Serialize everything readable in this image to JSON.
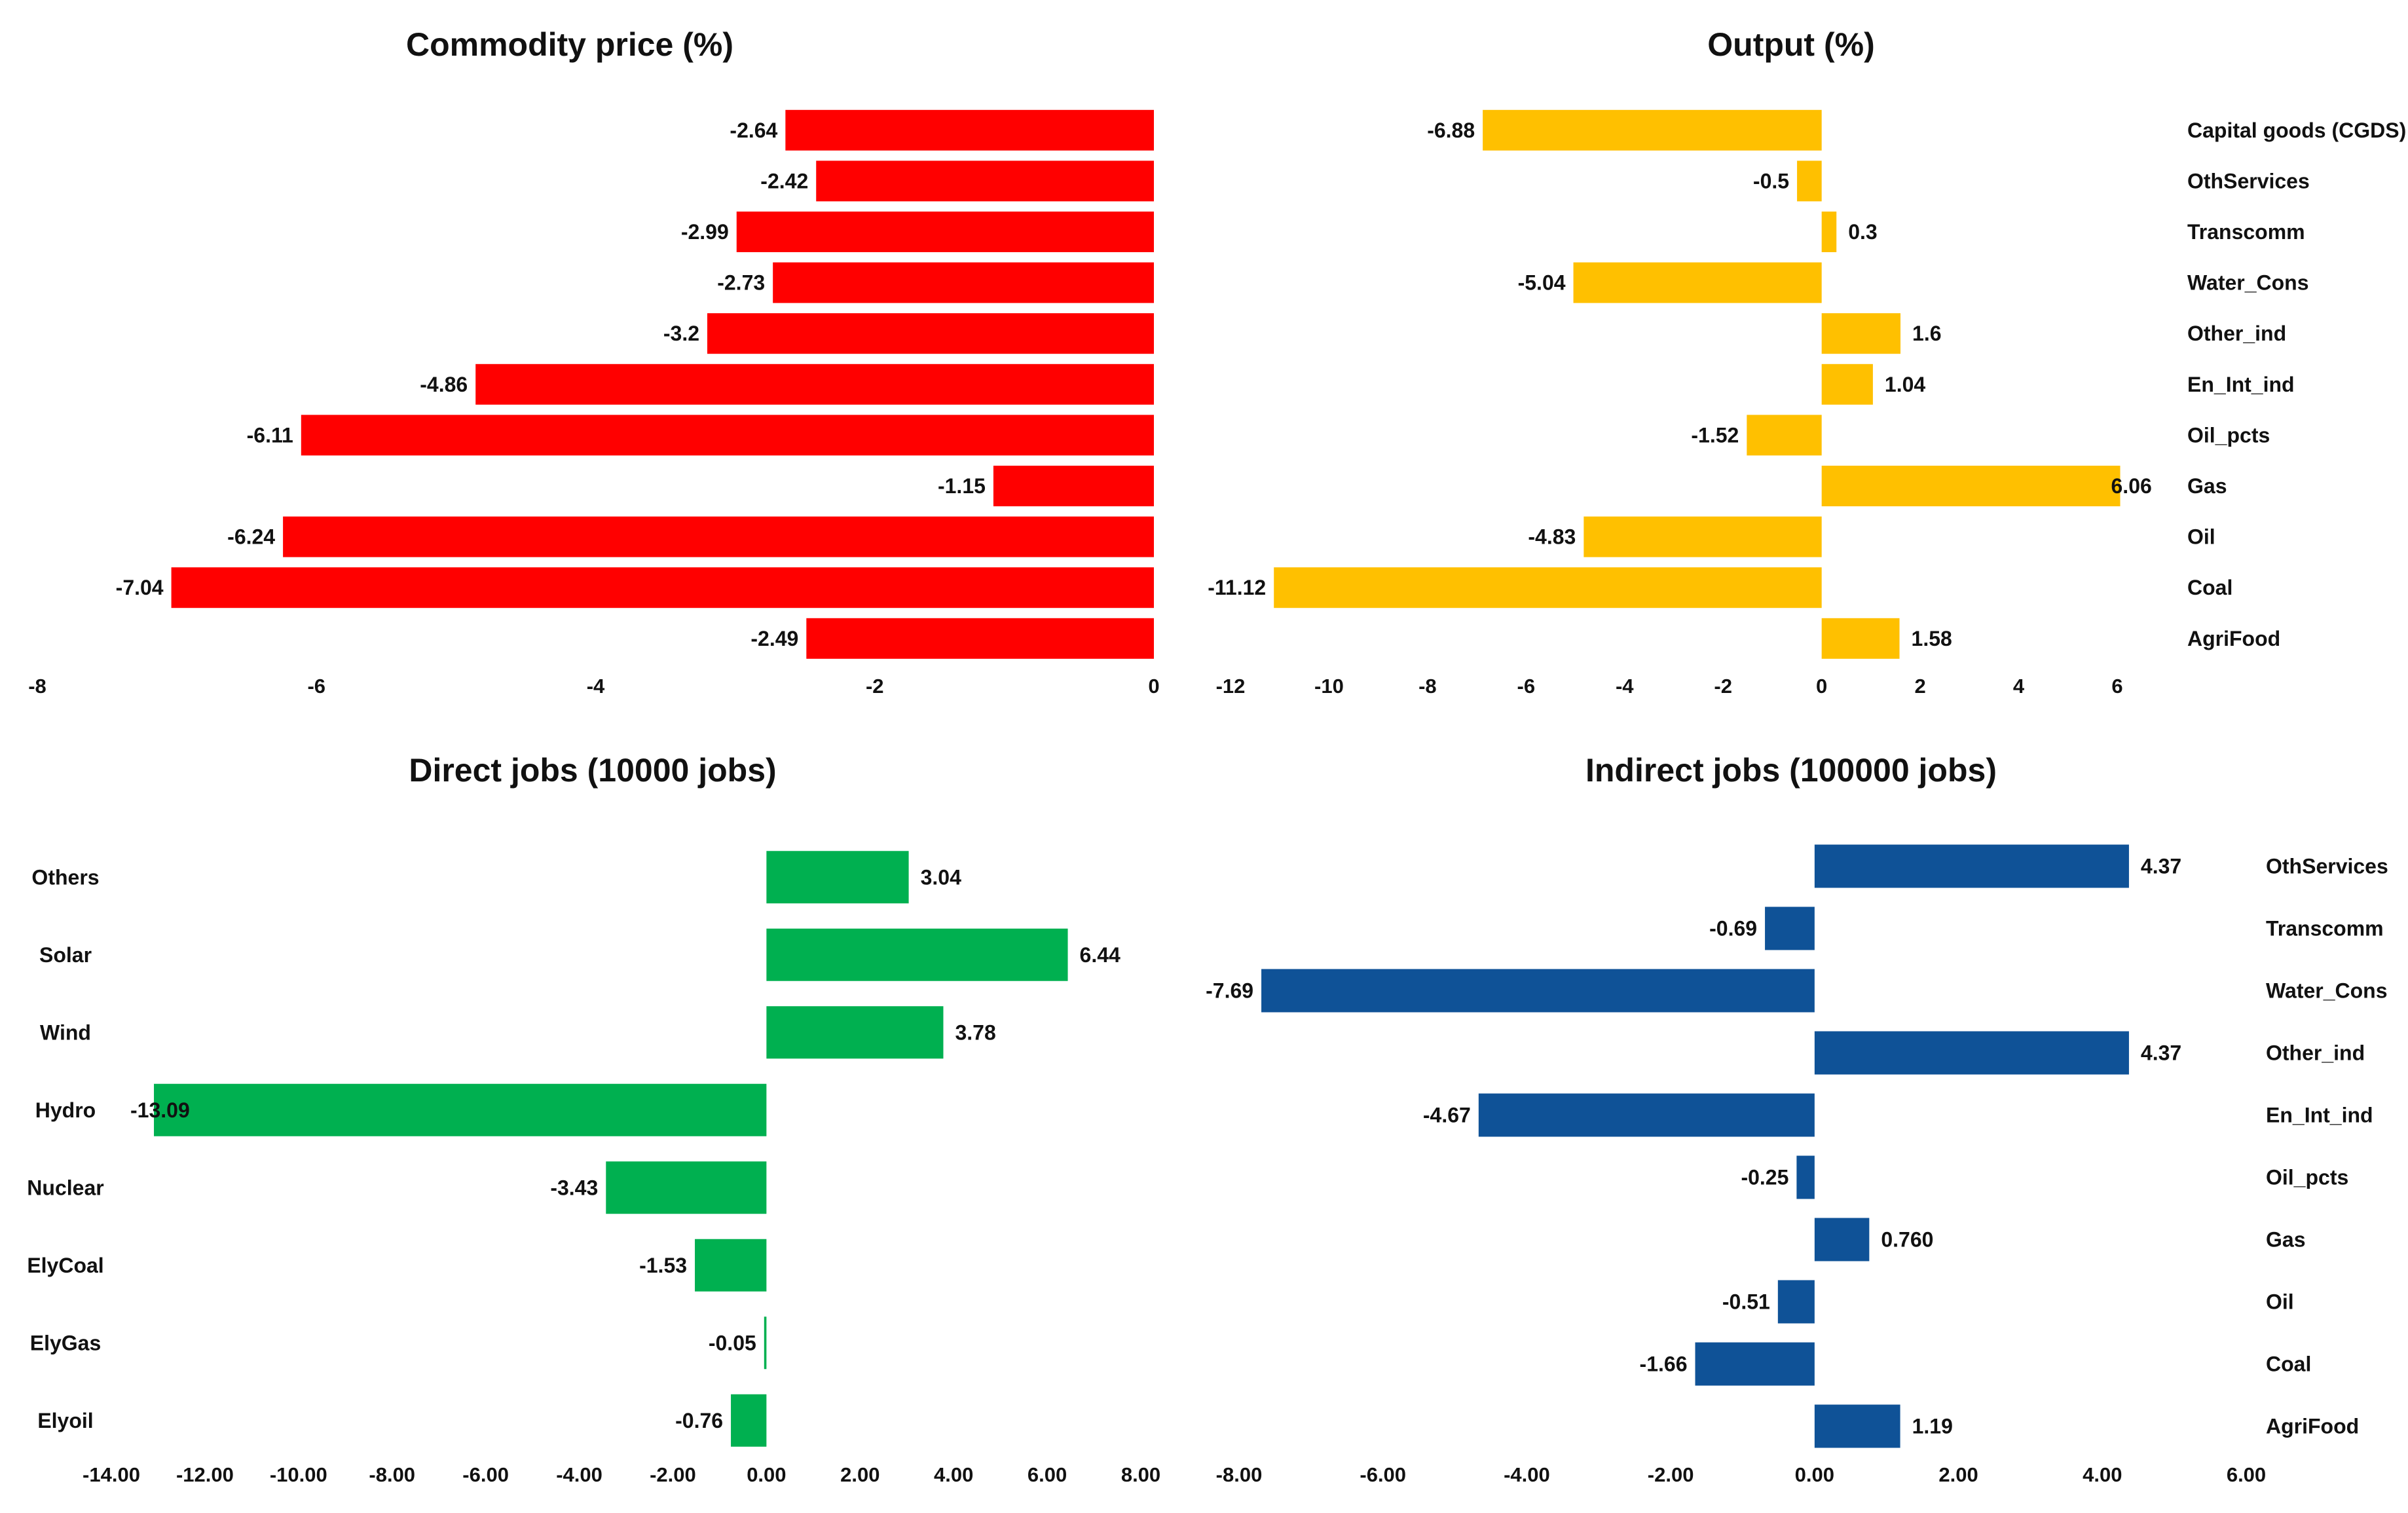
{
  "chart_data": [
    {
      "type": "bar",
      "orientation": "horizontal",
      "title": "Commodity price (%)",
      "color": "#ff0000",
      "categories": [
        "Capital goods (CGDS)",
        "OthServices",
        "Transcomm",
        "Water_Cons",
        "Other_ind",
        "En_Int_ind",
        "Oil_pcts",
        "Gas",
        "Oil",
        "Coal",
        "AgriFood"
      ],
      "values": [
        -2.64,
        -2.42,
        -2.99,
        -2.73,
        -3.2,
        -4.86,
        -6.11,
        -1.15,
        -6.24,
        -7.04,
        -2.49
      ],
      "value_labels": [
        "-2.64",
        "-2.42",
        "-2.99",
        "-2.73",
        "-3.2",
        "-4.86",
        "-6.11",
        "-1.15",
        "-6.24",
        "-7.04",
        "-2.49"
      ],
      "xlim": [
        -8,
        0
      ],
      "ticks": [
        -8,
        -6,
        -4,
        -2,
        0
      ],
      "tick_labels": [
        "-8",
        "-6",
        "-4",
        "-2",
        "0"
      ],
      "show_category_labels": false
    },
    {
      "type": "bar",
      "orientation": "horizontal",
      "title": "Output (%)",
      "color": "#ffc000",
      "categories": [
        "Capital goods (CGDS)",
        "OthServices",
        "Transcomm",
        "Water_Cons",
        "Other_ind",
        "En_Int_ind",
        "Oil_pcts",
        "Gas",
        "Oil",
        "Coal",
        "AgriFood"
      ],
      "values": [
        -6.88,
        -0.5,
        0.3,
        -5.04,
        1.6,
        1.04,
        -1.52,
        6.06,
        -4.83,
        -11.12,
        1.58
      ],
      "value_labels": [
        "-6.88",
        "-0.5",
        "0.3",
        "-5.04",
        "1.6",
        "1.04",
        "-1.52",
        "6.06",
        "-4.83",
        "-11.12",
        "1.58"
      ],
      "xlim": [
        -12,
        6
      ],
      "ticks": [
        -12,
        -10,
        -8,
        -6,
        -4,
        -2,
        0,
        2,
        4,
        6
      ],
      "tick_labels": [
        "-12",
        "-10",
        "-8",
        "-6",
        "-4",
        "-2",
        "0",
        "2",
        "4",
        "6"
      ],
      "show_category_labels": true
    },
    {
      "type": "bar",
      "orientation": "horizontal",
      "title": "Direct jobs (10000 jobs)",
      "color": "#00b050",
      "categories": [
        "Others",
        "Solar",
        "Wind",
        "Hydro",
        "Nuclear",
        "ElyCoal",
        "ElyGas",
        "Elyoil"
      ],
      "values": [
        3.04,
        6.44,
        3.78,
        -13.09,
        -3.43,
        -1.53,
        -0.05,
        -0.76
      ],
      "value_labels": [
        "3.04",
        "6.44",
        "3.78",
        "-13.09",
        "-3.43",
        "-1.53",
        "-0.05",
        "-0.76"
      ],
      "xlim": [
        -14,
        8
      ],
      "ticks": [
        -14,
        -12,
        -10,
        -8,
        -6,
        -4,
        -2,
        0,
        2,
        4,
        6,
        8
      ],
      "tick_labels": [
        "-14.00",
        "-12.00",
        "-10.00",
        "-8.00",
        "-6.00",
        "-4.00",
        "-2.00",
        "0.00",
        "2.00",
        "4.00",
        "6.00",
        "8.00"
      ],
      "show_category_labels": true
    },
    {
      "type": "bar",
      "orientation": "horizontal",
      "title": "Indirect jobs (100000 jobs)",
      "color": "#0f5297",
      "categories": [
        "OthServices",
        "Transcomm",
        "Water_Cons",
        "Other_ind",
        "En_Int_ind",
        "Oil_pcts",
        "Gas",
        "Oil",
        "Coal",
        "AgriFood"
      ],
      "values": [
        4.37,
        -0.69,
        -7.69,
        4.37,
        -4.67,
        -0.25,
        0.76,
        -0.51,
        -1.66,
        1.19
      ],
      "value_labels": [
        "4.37",
        "-0.69",
        "-7.69",
        "4.37",
        "-4.67",
        "-0.25",
        "0.760",
        "-0.51",
        "-1.66",
        "1.19"
      ],
      "xlim": [
        -8,
        6
      ],
      "ticks": [
        -8,
        -6,
        -4,
        -2,
        0,
        2,
        4,
        6
      ],
      "tick_labels": [
        "-8.00",
        "-6.00",
        "-4.00",
        "-2.00",
        "0.00",
        "2.00",
        "4.00",
        "6.00"
      ],
      "show_category_labels": true
    }
  ]
}
